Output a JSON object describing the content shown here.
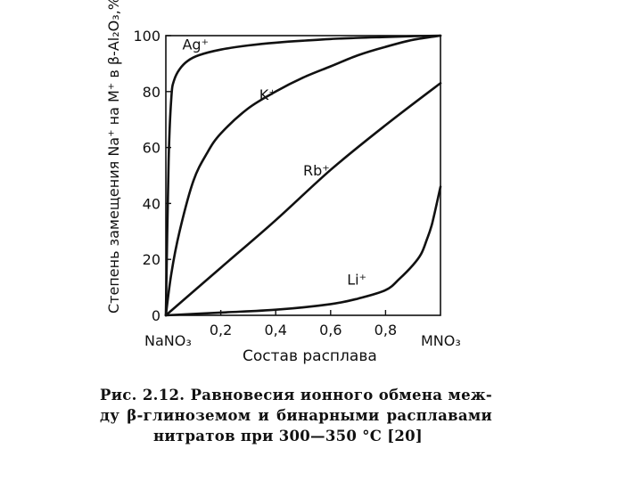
{
  "chart_data": {
    "type": "line",
    "ylabel": "Степень замещения Na⁺ на M⁺ в β-Al₂O₃,%",
    "xlabel": "Состав расплава",
    "x_axis_left_label": "NaNO₃",
    "x_axis_right_label": "MNO₃",
    "xlim": [
      0,
      1
    ],
    "ylim": [
      0,
      100
    ],
    "xticks": [
      0.2,
      0.4,
      0.6,
      0.8
    ],
    "xtick_labels": [
      "0,2",
      "0,4",
      "0,6",
      "0,8"
    ],
    "yticks": [
      0,
      20,
      40,
      60,
      80,
      100
    ],
    "ytick_labels": [
      "0",
      "20",
      "40",
      "60",
      "80",
      "100"
    ],
    "grid": false,
    "series": [
      {
        "name": "Ag⁺",
        "x": [
          0,
          0.01,
          0.02,
          0.03,
          0.05,
          0.08,
          0.12,
          0.2,
          0.3,
          0.4,
          0.5,
          0.6,
          0.7,
          0.8,
          0.9,
          1.0
        ],
        "y": [
          0,
          55,
          78,
          84,
          88,
          91,
          93,
          95,
          96.5,
          97.5,
          98.2,
          98.8,
          99.2,
          99.5,
          99.8,
          100
        ]
      },
      {
        "name": "K⁺",
        "x": [
          0,
          0.02,
          0.05,
          0.1,
          0.15,
          0.2,
          0.3,
          0.4,
          0.5,
          0.6,
          0.7,
          0.8,
          0.9,
          1.0
        ],
        "y": [
          0,
          15,
          30,
          48,
          58,
          65,
          74,
          80,
          85,
          89,
          93,
          96,
          98.5,
          100
        ]
      },
      {
        "name": "Rb⁺",
        "x": [
          0,
          0.2,
          0.4,
          0.6,
          0.8,
          1.0
        ],
        "y": [
          0,
          17,
          34,
          52,
          68,
          83
        ]
      },
      {
        "name": "Li⁺",
        "x": [
          0,
          0.2,
          0.4,
          0.6,
          0.7,
          0.8,
          0.85,
          0.9,
          0.93,
          0.95,
          0.97,
          1.0
        ],
        "y": [
          0,
          1,
          2,
          4,
          6,
          9,
          13,
          18,
          22,
          27,
          33,
          46
        ]
      }
    ]
  },
  "caption": {
    "line1": "Рис. 2.12. Равновесия ионного обмена меж-",
    "line2": "ду β-глиноземом и бинарными расплавами",
    "line3": "нитратов при 300—350 °C [20]"
  }
}
